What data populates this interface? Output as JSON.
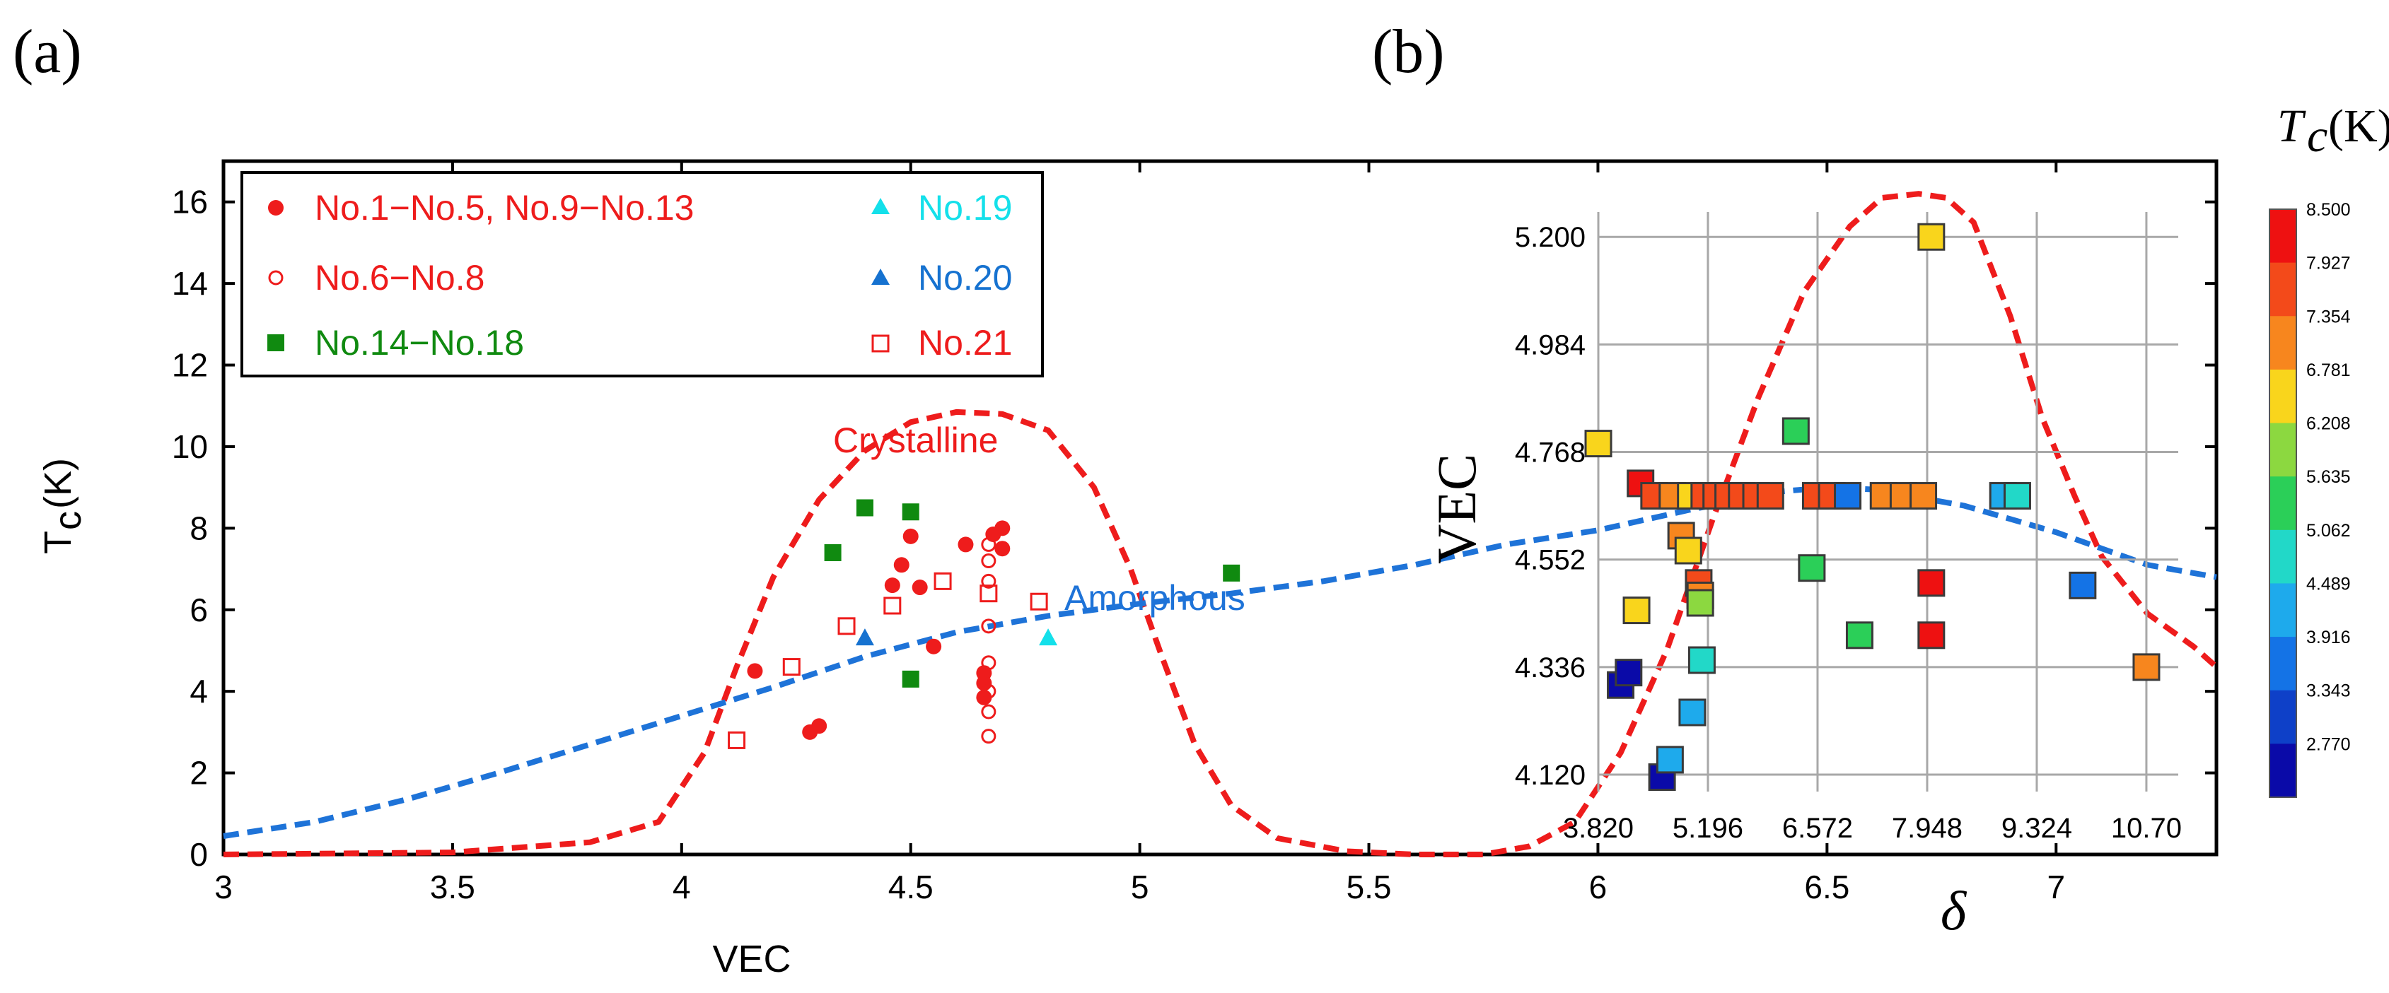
{
  "chart_data": [
    {
      "type": "scatter",
      "panel_label": "(a)",
      "xlabel": "VEC",
      "ylabel": "T",
      "ylabel_sub": "c",
      "ylabel_unit": "(K)",
      "xlim": [
        3,
        7.35
      ],
      "ylim": [
        0,
        17
      ],
      "xticks": [
        "3",
        "3.5",
        "4",
        "4.5",
        "5",
        "5.5",
        "6",
        "6.5",
        "7"
      ],
      "yticks": [
        "0",
        "2",
        "4",
        "6",
        "8",
        "10",
        "12",
        "14",
        "16"
      ],
      "legend_placement": "top-left",
      "series": [
        {
          "name": "No.1−No.5, No.9−No.13",
          "marker": "filled-circle",
          "color": "#ee1c1c",
          "points": [
            [
              4.16,
              4.5
            ],
            [
              4.28,
              3.0
            ],
            [
              4.3,
              3.15
            ],
            [
              4.46,
              6.6
            ],
            [
              4.48,
              7.1
            ],
            [
              4.5,
              7.8
            ],
            [
              4.52,
              6.55
            ],
            [
              4.55,
              5.1
            ],
            [
              4.62,
              7.6
            ],
            [
              4.66,
              4.45
            ],
            [
              4.66,
              3.85
            ],
            [
              4.66,
              4.2
            ],
            [
              4.68,
              7.85
            ],
            [
              4.7,
              8.0
            ],
            [
              4.7,
              7.5
            ]
          ]
        },
        {
          "name": "No.6−No.8",
          "marker": "open-circle",
          "color": "#ee1c1c",
          "points": [
            [
              4.67,
              7.6
            ],
            [
              4.67,
              7.2
            ],
            [
              4.67,
              6.7
            ],
            [
              4.67,
              5.6
            ],
            [
              4.67,
              4.7
            ],
            [
              4.67,
              4.0
            ],
            [
              4.67,
              3.5
            ],
            [
              4.67,
              2.9
            ]
          ]
        },
        {
          "name": "No.14−No.18",
          "marker": "filled-square",
          "color": "#108a10",
          "points": [
            [
              4.33,
              7.4
            ],
            [
              4.4,
              8.5
            ],
            [
              4.5,
              8.4
            ],
            [
              4.5,
              4.3
            ],
            [
              5.2,
              6.9
            ]
          ]
        },
        {
          "name": "No.19",
          "marker": "filled-triangle",
          "color": "#14e0ea",
          "points": [
            [
              4.8,
              5.3
            ]
          ]
        },
        {
          "name": "No.20",
          "marker": "filled-triangle",
          "color": "#1672d0",
          "points": [
            [
              4.4,
              5.3
            ]
          ]
        },
        {
          "name": "No.21",
          "marker": "open-square",
          "color": "#ee1c1c",
          "points": [
            [
              4.12,
              2.8
            ],
            [
              4.24,
              4.6
            ],
            [
              4.36,
              5.6
            ],
            [
              4.46,
              6.1
            ],
            [
              4.57,
              6.7
            ],
            [
              4.67,
              6.4
            ],
            [
              4.78,
              6.2
            ]
          ]
        }
      ],
      "curves": [
        {
          "name": "Crystalline",
          "style": "dashed",
          "color": "#ee1c1c",
          "points": [
            [
              3.0,
              0.0
            ],
            [
              3.5,
              0.05
            ],
            [
              3.8,
              0.3
            ],
            [
              3.95,
              0.8
            ],
            [
              4.05,
              2.5
            ],
            [
              4.12,
              4.6
            ],
            [
              4.2,
              6.8
            ],
            [
              4.3,
              8.7
            ],
            [
              4.4,
              9.9
            ],
            [
              4.5,
              10.6
            ],
            [
              4.6,
              10.85
            ],
            [
              4.7,
              10.8
            ],
            [
              4.8,
              10.4
            ],
            [
              4.9,
              9.0
            ],
            [
              4.98,
              7.0
            ],
            [
              5.05,
              4.8
            ],
            [
              5.12,
              2.7
            ],
            [
              5.2,
              1.2
            ],
            [
              5.3,
              0.4
            ],
            [
              5.45,
              0.08
            ],
            [
              5.6,
              0.0
            ],
            [
              5.75,
              0.0
            ],
            [
              5.85,
              0.2
            ],
            [
              5.95,
              0.8
            ],
            [
              6.05,
              2.5
            ],
            [
              6.15,
              5.0
            ],
            [
              6.25,
              8.2
            ],
            [
              6.35,
              11.2
            ],
            [
              6.45,
              13.8
            ],
            [
              6.55,
              15.4
            ],
            [
              6.62,
              16.1
            ],
            [
              6.7,
              16.2
            ],
            [
              6.76,
              16.1
            ],
            [
              6.82,
              15.5
            ],
            [
              6.9,
              13.2
            ],
            [
              6.97,
              10.7
            ],
            [
              7.04,
              8.8
            ],
            [
              7.1,
              7.3
            ],
            [
              7.2,
              5.9
            ],
            [
              7.3,
              5.1
            ],
            [
              7.35,
              4.6
            ]
          ]
        },
        {
          "name": "Amorphous",
          "style": "dashed",
          "color": "#1e73d8",
          "points": [
            [
              3.0,
              0.45
            ],
            [
              3.2,
              0.8
            ],
            [
              3.4,
              1.35
            ],
            [
              3.6,
              2.0
            ],
            [
              3.8,
              2.7
            ],
            [
              4.0,
              3.4
            ],
            [
              4.2,
              4.1
            ],
            [
              4.4,
              4.85
            ],
            [
              4.6,
              5.45
            ],
            [
              4.8,
              5.85
            ],
            [
              5.0,
              6.15
            ],
            [
              5.2,
              6.4
            ],
            [
              5.4,
              6.7
            ],
            [
              5.6,
              7.1
            ],
            [
              5.8,
              7.6
            ],
            [
              6.0,
              7.95
            ],
            [
              6.2,
              8.45
            ],
            [
              6.4,
              8.9
            ],
            [
              6.5,
              9.0
            ],
            [
              6.6,
              8.95
            ],
            [
              6.8,
              8.55
            ],
            [
              7.0,
              7.9
            ],
            [
              7.2,
              7.1
            ],
            [
              7.35,
              6.8
            ]
          ]
        }
      ],
      "annotations": [
        {
          "text": "Crystalline",
          "color": "#ee1c1c"
        },
        {
          "text": "Amorphous",
          "color": "#1e73d8"
        }
      ]
    },
    {
      "type": "heatmap",
      "panel_label": "(b)",
      "xlabel": "δ",
      "ylabel": "VEC",
      "xlim": [
        3.82,
        11.1
      ],
      "ylim": [
        4.086,
        5.25
      ],
      "xticks": [
        "3.820",
        "5.196",
        "6.572",
        "7.948",
        "9.324",
        "10.70"
      ],
      "yticks": [
        "5.200",
        "4.984",
        "4.768",
        "4.552",
        "4.336",
        "4.120"
      ],
      "colorbar_title": "T",
      "colorbar_title_sub": "c",
      "colorbar_unit": "(K)",
      "colorbar_ticks": [
        "8.500",
        "7.927",
        "7.354",
        "6.781",
        "6.208",
        "5.635",
        "5.062",
        "4.489",
        "3.916",
        "3.343",
        "2.770"
      ],
      "colorbar_colors": [
        "#ee1111",
        "#f34a1a",
        "#f7861e",
        "#f9d51c",
        "#8cd840",
        "#2bcf58",
        "#22d8c8",
        "#1eaaec",
        "#1473e6",
        "#0e40c8",
        "#0a0aa8"
      ],
      "points": [
        {
          "delta": 3.82,
          "vec": 4.785,
          "tc": 6.8
        },
        {
          "delta": 4.1,
          "vec": 4.3,
          "tc": 3.1
        },
        {
          "delta": 4.2,
          "vec": 4.325,
          "tc": 3.0
        },
        {
          "delta": 4.3,
          "vec": 4.45,
          "tc": 6.8
        },
        {
          "delta": 4.35,
          "vec": 4.705,
          "tc": 8.3
        },
        {
          "delta": 4.52,
          "vec": 4.68,
          "tc": 7.6
        },
        {
          "delta": 4.62,
          "vec": 4.115,
          "tc": 2.8
        },
        {
          "delta": 4.72,
          "vec": 4.15,
          "tc": 4.6
        },
        {
          "delta": 4.75,
          "vec": 4.68,
          "tc": 7.0
        },
        {
          "delta": 4.86,
          "vec": 4.6,
          "tc": 7.2
        },
        {
          "delta": 4.95,
          "vec": 4.57,
          "tc": 6.6
        },
        {
          "delta": 4.98,
          "vec": 4.68,
          "tc": 6.9
        },
        {
          "delta": 5.0,
          "vec": 4.245,
          "tc": 4.8
        },
        {
          "delta": 5.08,
          "vec": 4.505,
          "tc": 7.6
        },
        {
          "delta": 5.1,
          "vec": 4.48,
          "tc": 7.2
        },
        {
          "delta": 5.1,
          "vec": 4.465,
          "tc": 6.0
        },
        {
          "delta": 5.12,
          "vec": 4.35,
          "tc": 5.3
        },
        {
          "delta": 5.15,
          "vec": 4.68,
          "tc": 7.7
        },
        {
          "delta": 5.3,
          "vec": 4.68,
          "tc": 7.6
        },
        {
          "delta": 5.45,
          "vec": 4.68,
          "tc": 7.6
        },
        {
          "delta": 5.62,
          "vec": 4.68,
          "tc": 7.5
        },
        {
          "delta": 5.8,
          "vec": 4.68,
          "tc": 7.6
        },
        {
          "delta": 5.98,
          "vec": 4.68,
          "tc": 7.7
        },
        {
          "delta": 6.3,
          "vec": 4.81,
          "tc": 5.8
        },
        {
          "delta": 6.5,
          "vec": 4.535,
          "tc": 5.4
        },
        {
          "delta": 6.55,
          "vec": 4.68,
          "tc": 7.6
        },
        {
          "delta": 6.75,
          "vec": 4.68,
          "tc": 7.5
        },
        {
          "delta": 6.95,
          "vec": 4.68,
          "tc": 4.0
        },
        {
          "delta": 7.1,
          "vec": 4.4,
          "tc": 5.6
        },
        {
          "delta": 7.4,
          "vec": 4.68,
          "tc": 7.1
        },
        {
          "delta": 7.65,
          "vec": 4.68,
          "tc": 7.2
        },
        {
          "delta": 7.9,
          "vec": 4.68,
          "tc": 7.4
        },
        {
          "delta": 8.0,
          "vec": 5.2,
          "tc": 6.9
        },
        {
          "delta": 8.0,
          "vec": 4.505,
          "tc": 8.3
        },
        {
          "delta": 8.0,
          "vec": 4.4,
          "tc": 8.4
        },
        {
          "delta": 8.9,
          "vec": 4.68,
          "tc": 4.5
        },
        {
          "delta": 9.08,
          "vec": 4.68,
          "tc": 5.3
        },
        {
          "delta": 9.9,
          "vec": 4.5,
          "tc": 4.0
        },
        {
          "delta": 10.7,
          "vec": 4.336,
          "tc": 7.3
        }
      ]
    }
  ]
}
